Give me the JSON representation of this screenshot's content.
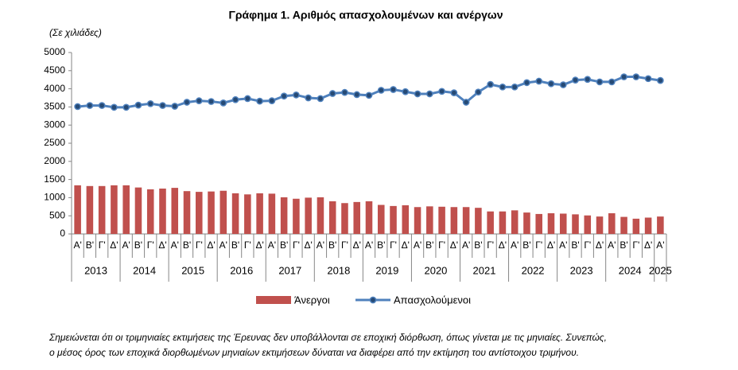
{
  "chart_data": {
    "type": "bar-line",
    "title": "Γράφημα 1. Αριθμός απασχολουμένων και ανέργων",
    "unit_label": "(Σε χιλιάδες)",
    "categories": [
      "Α'",
      "Β'",
      "Γ'",
      "Δ'",
      "Α'",
      "Β'",
      "Γ'",
      "Δ'",
      "Α'",
      "Β'",
      "Γ'",
      "Δ'",
      "Α'",
      "Β'",
      "Γ'",
      "Δ'",
      "Α'",
      "Β'",
      "Γ'",
      "Δ'",
      "Α'",
      "Β'",
      "Γ'",
      "Δ'",
      "Α'",
      "Β'",
      "Γ'",
      "Δ'",
      "Α'",
      "Β'",
      "Γ'",
      "Δ'",
      "Α'",
      "Β'",
      "Γ'",
      "Δ'",
      "Α'",
      "Β'",
      "Γ'",
      "Δ'",
      "Α'",
      "Β'",
      "Γ'",
      "Δ'",
      "Α'",
      "Β'",
      "Γ'",
      "Δ'",
      "Α'"
    ],
    "years": [
      "2013",
      "2014",
      "2015",
      "2016",
      "2017",
      "2018",
      "2019",
      "2020",
      "2021",
      "2022",
      "2023",
      "2024",
      "2025"
    ],
    "series": [
      {
        "name": "Άνεργοι",
        "type": "bar",
        "color": "#c0504d",
        "values": [
          1340,
          1320,
          1320,
          1340,
          1340,
          1280,
          1230,
          1250,
          1270,
          1180,
          1160,
          1170,
          1190,
          1120,
          1090,
          1120,
          1110,
          1010,
          970,
          1000,
          1010,
          900,
          850,
          880,
          900,
          800,
          770,
          790,
          740,
          760,
          750,
          740,
          740,
          720,
          620,
          620,
          650,
          590,
          550,
          570,
          560,
          540,
          510,
          480,
          570,
          470,
          420,
          450,
          480
        ]
      },
      {
        "name": "Απασχολούμενοι",
        "type": "line",
        "color": "#4f81bd",
        "marker_color": "#264a75",
        "values": [
          3510,
          3540,
          3540,
          3490,
          3490,
          3550,
          3590,
          3540,
          3520,
          3630,
          3670,
          3650,
          3610,
          3700,
          3730,
          3660,
          3670,
          3800,
          3830,
          3750,
          3730,
          3870,
          3900,
          3840,
          3820,
          3960,
          3980,
          3920,
          3860,
          3860,
          3930,
          3890,
          3630,
          3910,
          4120,
          4050,
          4050,
          4170,
          4210,
          4140,
          4110,
          4240,
          4260,
          4190,
          4190,
          4330,
          4330,
          4280,
          4230
        ]
      }
    ],
    "ylim": [
      0,
      5000
    ],
    "yticks": [
      0,
      500,
      1000,
      1500,
      2000,
      2500,
      3000,
      3500,
      4000,
      4500,
      5000
    ],
    "grid": false,
    "notes": [
      "Σημειώνεται ότι οι τριμηνιαίες εκτιμήσεις της Έρευνας δεν υποβάλλονται σε εποχική διόρθωση, όπως γίνεται με τις μηνιαίες. Συνεπώς,",
      "ο μέσος όρος των εποχικά διορθωμένων μηνιαίων εκτιμήσεων δύναται να διαφέρει από την εκτίμηση του αντίστοιχου τριμήνου."
    ]
  }
}
